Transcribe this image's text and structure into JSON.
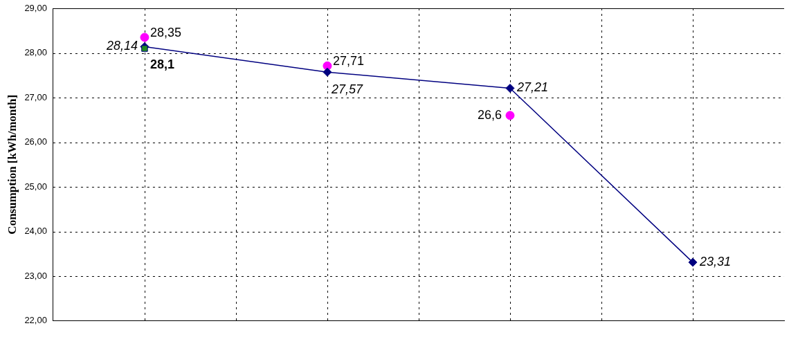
{
  "chart_data": {
    "type": "line",
    "ylabel": "Consumption [kWh/month]",
    "categories": [
      null,
      null,
      null,
      null
    ],
    "ylim": [
      22,
      29
    ],
    "yticks": [
      {
        "value": 22,
        "label": "22,00"
      },
      {
        "value": 23,
        "label": "23,00"
      },
      {
        "value": 24,
        "label": "24,00"
      },
      {
        "value": 25,
        "label": "25,00"
      },
      {
        "value": 26,
        "label": "26,00"
      },
      {
        "value": 27,
        "label": "27,00"
      },
      {
        "value": 28,
        "label": "28,00"
      },
      {
        "value": 29,
        "label": "29,00"
      }
    ],
    "grid": true,
    "legend": false,
    "series": [
      {
        "type": "scatter",
        "color": "#ff00ff",
        "marker": "circle",
        "values": [
          28.35,
          27.71,
          26.6,
          null
        ],
        "value_labels": [
          "28,35",
          "27,71",
          "26,6",
          null
        ]
      },
      {
        "color": "#000080",
        "marker": "diamond",
        "line_style": "solid",
        "values": [
          28.14,
          27.57,
          27.21,
          23.31
        ],
        "value_labels": [
          "28,14",
          "27,57",
          "27,21",
          "23,31"
        ]
      },
      {
        "type": "scatter",
        "color": "#228b22",
        "marker": "square",
        "values": [
          28.1,
          null,
          null,
          null
        ],
        "value_labels": [
          "28,1",
          null,
          null,
          null
        ]
      }
    ]
  }
}
